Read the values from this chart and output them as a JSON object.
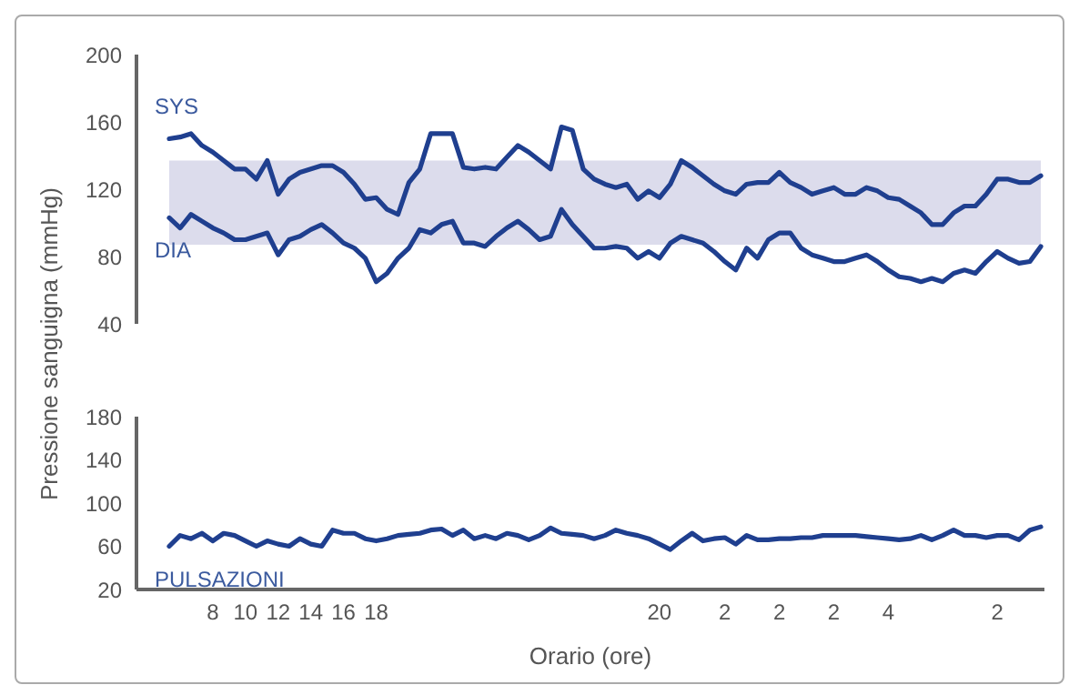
{
  "chart_data": [
    {
      "type": "line",
      "ylabel": "Pressione sanguigna (mmHg)",
      "categories": [
        null,
        null,
        null,
        null,
        "8",
        null,
        null,
        "10",
        null,
        null,
        "12",
        null,
        null,
        "14",
        null,
        null,
        "16",
        null,
        null,
        "18",
        null,
        null,
        null,
        null,
        null,
        null,
        null,
        null,
        null,
        null,
        null,
        null,
        null,
        null,
        null,
        null,
        null,
        null,
        null,
        null,
        null,
        null,
        null,
        null,
        null,
        "20",
        null,
        null,
        null,
        null,
        null,
        "2",
        null,
        null,
        null,
        null,
        "2",
        null,
        null,
        null,
        null,
        "2",
        null,
        null,
        null,
        null,
        "4",
        null,
        null,
        null,
        null,
        null,
        null,
        null,
        null,
        null,
        "2",
        null,
        null,
        null,
        null
      ],
      "ylim": [
        40,
        200
      ],
      "yticks": [
        40,
        80,
        120,
        160,
        200
      ],
      "tick_labels": "y",
      "bands": [
        {
          "axis": "y",
          "from": 87,
          "to": 137,
          "color": "#dcdcec"
        }
      ],
      "series": [
        {
          "name": "SYS",
          "color": "#1f3f8f",
          "values": [
            150,
            151,
            153,
            146,
            142,
            137,
            132,
            132,
            126,
            137,
            117,
            126,
            130,
            132,
            134,
            134,
            130,
            123,
            114,
            115,
            108,
            105,
            124,
            132,
            153,
            153,
            153,
            133,
            132,
            133,
            132,
            139,
            146,
            142,
            137,
            132,
            157,
            155,
            132,
            126,
            123,
            121,
            123,
            114,
            119,
            115,
            123,
            137,
            133,
            128,
            123,
            119,
            117,
            123,
            124,
            124,
            130,
            124,
            121,
            117,
            119,
            121,
            117,
            117,
            121,
            119,
            115,
            114,
            110,
            106,
            99,
            99,
            106,
            110,
            110,
            117,
            126,
            126,
            124,
            124,
            128
          ]
        },
        {
          "name": "DIA",
          "color": "#1f3f8f",
          "values": [
            103,
            97,
            105,
            101,
            97,
            94,
            90,
            90,
            92,
            94,
            81,
            90,
            92,
            96,
            99,
            94,
            88,
            85,
            79,
            65,
            70,
            79,
            85,
            96,
            94,
            99,
            101,
            88,
            88,
            86,
            92,
            97,
            101,
            96,
            90,
            92,
            108,
            99,
            92,
            85,
            85,
            86,
            85,
            79,
            83,
            79,
            88,
            92,
            90,
            88,
            83,
            77,
            72,
            85,
            79,
            90,
            94,
            94,
            85,
            81,
            79,
            77,
            77,
            79,
            81,
            77,
            72,
            68,
            67,
            65,
            67,
            65,
            70,
            72,
            70,
            77,
            83,
            79,
            76,
            77,
            86
          ]
        }
      ]
    },
    {
      "type": "line",
      "xlabel": "Orario (ore)",
      "categories": [
        null,
        null,
        null,
        null,
        "8",
        null,
        null,
        "10",
        null,
        null,
        "12",
        null,
        null,
        "14",
        null,
        null,
        "16",
        null,
        null,
        "18",
        null,
        null,
        null,
        null,
        null,
        null,
        null,
        null,
        null,
        null,
        null,
        null,
        null,
        null,
        null,
        null,
        null,
        null,
        null,
        null,
        null,
        null,
        null,
        null,
        null,
        "20",
        null,
        null,
        null,
        null,
        null,
        "2",
        null,
        null,
        null,
        null,
        "2",
        null,
        null,
        null,
        null,
        "2",
        null,
        null,
        null,
        null,
        "4",
        null,
        null,
        null,
        null,
        null,
        null,
        null,
        null,
        null,
        "2",
        null,
        null,
        null,
        null
      ],
      "ylim": [
        20,
        180
      ],
      "yticks": [
        20,
        60,
        100,
        140,
        180
      ],
      "series": [
        {
          "name": "PULSAZIONI",
          "color": "#1f3f8f",
          "values": [
            60,
            70,
            67,
            72,
            65,
            72,
            70,
            65,
            60,
            65,
            62,
            60,
            67,
            62,
            60,
            75,
            72,
            72,
            67,
            65,
            67,
            70,
            71,
            72,
            75,
            76,
            70,
            75,
            67,
            70,
            67,
            72,
            70,
            66,
            70,
            77,
            72,
            71,
            70,
            67,
            70,
            75,
            72,
            70,
            67,
            62,
            57,
            65,
            72,
            65,
            67,
            68,
            62,
            70,
            66,
            66,
            67,
            67,
            68,
            68,
            70,
            70,
            70,
            70,
            69,
            68,
            67,
            66,
            67,
            70,
            66,
            70,
            75,
            70,
            70,
            68,
            70,
            70,
            66,
            75,
            78
          ]
        }
      ]
    }
  ]
}
